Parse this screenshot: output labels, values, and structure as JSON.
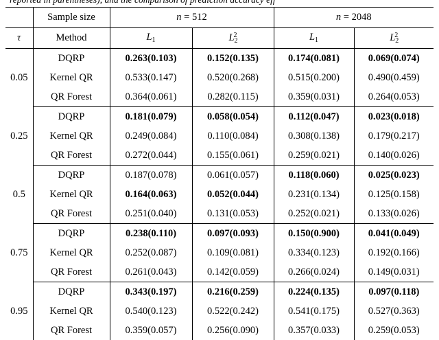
{
  "caption_fragment": "reported in parentheses), and the comparison of prediction accuracy eff",
  "table": {
    "header": {
      "sample_size": "Sample size",
      "n512": {
        "italic": "n",
        "rest": " = 512"
      },
      "n2048": {
        "italic": "n",
        "rest": " = 2048"
      },
      "tau": "τ",
      "method": "Method",
      "metrics": [
        {
          "base": "L",
          "sub": "1",
          "sup": ""
        },
        {
          "base": "L",
          "sub": "2",
          "sup": "2"
        },
        {
          "base": "L",
          "sub": "1",
          "sup": ""
        },
        {
          "base": "L",
          "sub": "2",
          "sup": "2"
        }
      ]
    },
    "groups": [
      {
        "tau": "0.05",
        "rows": [
          {
            "method": "DQRP",
            "cells": [
              {
                "text": "0.263(0.103)",
                "bold": true
              },
              {
                "text": "0.152(0.135)",
                "bold": true
              },
              {
                "text": "0.174(0.081)",
                "bold": true
              },
              {
                "text": "0.069(0.074)",
                "bold": true
              }
            ]
          },
          {
            "method": "Kernel QR",
            "cells": [
              {
                "text": "0.533(0.147)",
                "bold": false
              },
              {
                "text": "0.520(0.268)",
                "bold": false
              },
              {
                "text": "0.515(0.200)",
                "bold": false
              },
              {
                "text": "0.490(0.459)",
                "bold": false
              }
            ]
          },
          {
            "method": "QR Forest",
            "cells": [
              {
                "text": "0.364(0.061)",
                "bold": false
              },
              {
                "text": "0.282(0.115)",
                "bold": false
              },
              {
                "text": "0.359(0.031)",
                "bold": false
              },
              {
                "text": "0.264(0.053)",
                "bold": false
              }
            ]
          }
        ]
      },
      {
        "tau": "0.25",
        "rows": [
          {
            "method": "DQRP",
            "cells": [
              {
                "text": "0.181(0.079)",
                "bold": true
              },
              {
                "text": "0.058(0.054)",
                "bold": true
              },
              {
                "text": "0.112(0.047)",
                "bold": true
              },
              {
                "text": "0.023(0.018)",
                "bold": true
              }
            ]
          },
          {
            "method": "Kernel QR",
            "cells": [
              {
                "text": "0.249(0.084)",
                "bold": false
              },
              {
                "text": "0.110(0.084)",
                "bold": false
              },
              {
                "text": "0.308(0.138)",
                "bold": false
              },
              {
                "text": "0.179(0.217)",
                "bold": false
              }
            ]
          },
          {
            "method": "QR Forest",
            "cells": [
              {
                "text": "0.272(0.044)",
                "bold": false
              },
              {
                "text": "0.155(0.061)",
                "bold": false
              },
              {
                "text": "0.259(0.021)",
                "bold": false
              },
              {
                "text": "0.140(0.026)",
                "bold": false
              }
            ]
          }
        ]
      },
      {
        "tau": "0.5",
        "rows": [
          {
            "method": "DQRP",
            "cells": [
              {
                "text": "0.187(0.078)",
                "bold": false
              },
              {
                "text": "0.061(0.057)",
                "bold": false
              },
              {
                "text": "0.118(0.060)",
                "bold": true
              },
              {
                "text": "0.025(0.023)",
                "bold": true
              }
            ]
          },
          {
            "method": "Kernel QR",
            "cells": [
              {
                "text": "0.164(0.063)",
                "bold": true
              },
              {
                "text": "0.052(0.044)",
                "bold": true
              },
              {
                "text": "0.231(0.134)",
                "bold": false
              },
              {
                "text": "0.125(0.158)",
                "bold": false
              }
            ]
          },
          {
            "method": "QR Forest",
            "cells": [
              {
                "text": "0.251(0.040)",
                "bold": false
              },
              {
                "text": "0.131(0.053)",
                "bold": false
              },
              {
                "text": "0.252(0.021)",
                "bold": false
              },
              {
                "text": "0.133(0.026)",
                "bold": false
              }
            ]
          }
        ]
      },
      {
        "tau": "0.75",
        "rows": [
          {
            "method": "DQRP",
            "cells": [
              {
                "text": "0.238(0.110)",
                "bold": true
              },
              {
                "text": "0.097(0.093)",
                "bold": true
              },
              {
                "text": "0.150(0.900)",
                "bold": true
              },
              {
                "text": "0.041(0.049)",
                "bold": true
              }
            ]
          },
          {
            "method": "Kernel QR",
            "cells": [
              {
                "text": "0.252(0.087)",
                "bold": false
              },
              {
                "text": "0.109(0.081)",
                "bold": false
              },
              {
                "text": "0.334(0.123)",
                "bold": false
              },
              {
                "text": "0.192(0.166)",
                "bold": false
              }
            ]
          },
          {
            "method": "QR Forest",
            "cells": [
              {
                "text": "0.261(0.043)",
                "bold": false
              },
              {
                "text": "0.142(0.059)",
                "bold": false
              },
              {
                "text": "0.266(0.024)",
                "bold": false
              },
              {
                "text": "0.149(0.031)",
                "bold": false
              }
            ]
          }
        ]
      },
      {
        "tau": "0.95",
        "rows": [
          {
            "method": "DQRP",
            "cells": [
              {
                "text": "0.343(0.197)",
                "bold": true
              },
              {
                "text": "0.216(0.259)",
                "bold": true
              },
              {
                "text": "0.224(0.135)",
                "bold": true
              },
              {
                "text": "0.097(0.118)",
                "bold": true
              }
            ]
          },
          {
            "method": "Kernel QR",
            "cells": [
              {
                "text": "0.540(0.123)",
                "bold": false
              },
              {
                "text": "0.522(0.242)",
                "bold": false
              },
              {
                "text": "0.541(0.175)",
                "bold": false
              },
              {
                "text": "0.527(0.363)",
                "bold": false
              }
            ]
          },
          {
            "method": "QR Forest",
            "cells": [
              {
                "text": "0.359(0.057)",
                "bold": false
              },
              {
                "text": "0.256(0.090)",
                "bold": false
              },
              {
                "text": "0.357(0.033)",
                "bold": false
              },
              {
                "text": "0.259(0.053)",
                "bold": false
              }
            ]
          }
        ]
      }
    ]
  }
}
